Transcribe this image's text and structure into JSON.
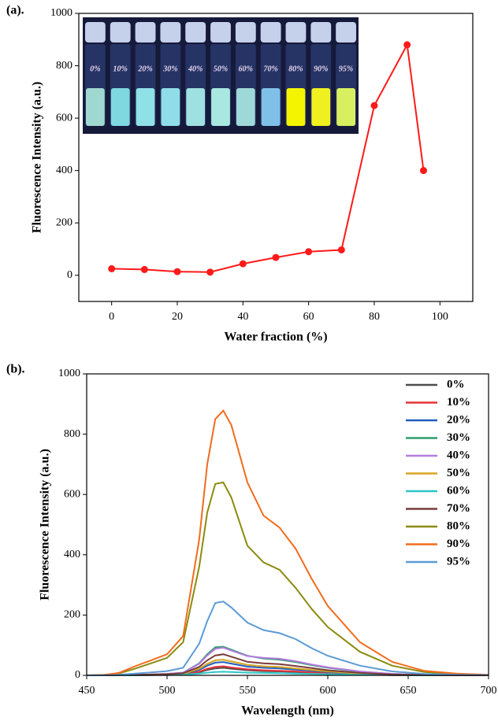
{
  "chart_data": [
    {
      "type": "line",
      "panel_label": "(a).",
      "x_label": "Water fraction (%)",
      "y_label": "Fluorescence Intensity (a.u.)",
      "x": [
        0,
        10,
        20,
        30,
        40,
        50,
        60,
        70,
        80,
        90,
        95
      ],
      "values": [
        25,
        22,
        14,
        12,
        44,
        68,
        90,
        97,
        648,
        880,
        400
      ],
      "color": "#ff1a1a",
      "xlim": [
        -10,
        110
      ],
      "xticks": [
        0,
        20,
        40,
        60,
        80,
        100
      ],
      "ylim": [
        -100,
        1000
      ],
      "yticks": [
        0,
        200,
        400,
        600,
        800,
        1000
      ],
      "inset_labels": [
        "0%",
        "10%",
        "20%",
        "30%",
        "40%",
        "50%",
        "60%",
        "70%",
        "80%",
        "90%",
        "95%"
      ]
    },
    {
      "type": "line",
      "panel_label": "(b).",
      "x_label": "Wavelength (nm)",
      "y_label": "Fluorescence Intensity (a.u.)",
      "x": [
        450,
        460,
        470,
        480,
        490,
        500,
        510,
        520,
        525,
        530,
        535,
        540,
        550,
        560,
        570,
        580,
        590,
        600,
        620,
        640,
        660,
        680,
        700
      ],
      "xlim": [
        450,
        700
      ],
      "xticks": [
        450,
        500,
        550,
        600,
        650,
        700
      ],
      "ylim": [
        0,
        1000
      ],
      "yticks": [
        0,
        200,
        400,
        600,
        800,
        1000
      ],
      "legend": "upper right",
      "series": [
        {
          "name": "0%",
          "color": "#4d4d4d",
          "values": [
            0,
            0,
            0,
            1,
            1,
            2,
            3,
            10,
            18,
            23,
            25,
            22,
            17,
            14,
            13,
            11,
            8,
            6,
            3,
            1,
            0,
            0,
            0
          ]
        },
        {
          "name": "10%",
          "color": "#e8333a",
          "values": [
            0,
            0,
            0,
            1,
            1,
            2,
            4,
            12,
            22,
            28,
            30,
            26,
            20,
            17,
            15,
            13,
            10,
            7,
            3,
            1,
            0,
            0,
            0
          ]
        },
        {
          "name": "20%",
          "color": "#1f5fbf",
          "values": [
            0,
            0,
            0,
            1,
            2,
            3,
            5,
            18,
            32,
            42,
            44,
            39,
            29,
            25,
            23,
            19,
            15,
            11,
            5,
            2,
            1,
            0,
            0
          ]
        },
        {
          "name": "30%",
          "color": "#2e9e6e",
          "values": [
            0,
            0,
            1,
            2,
            3,
            5,
            9,
            40,
            70,
            93,
            95,
            85,
            65,
            56,
            52,
            44,
            34,
            25,
            12,
            5,
            2,
            1,
            0
          ]
        },
        {
          "name": "40%",
          "color": "#b57be0",
          "values": [
            0,
            0,
            1,
            2,
            3,
            5,
            9,
            38,
            66,
            88,
            92,
            82,
            64,
            58,
            55,
            47,
            36,
            27,
            13,
            5,
            2,
            1,
            0
          ]
        },
        {
          "name": "50%",
          "color": "#d6a520",
          "values": [
            0,
            0,
            1,
            1,
            2,
            3,
            5,
            22,
            38,
            50,
            52,
            46,
            35,
            30,
            28,
            23,
            18,
            13,
            6,
            2,
            1,
            0,
            0
          ]
        },
        {
          "name": "60%",
          "color": "#2bc6c6",
          "values": [
            0,
            0,
            0,
            0,
            1,
            1,
            2,
            6,
            9,
            11,
            12,
            11,
            9,
            8,
            7,
            6,
            5,
            4,
            2,
            1,
            0,
            0,
            0
          ]
        },
        {
          "name": "70%",
          "color": "#7a3b3b",
          "values": [
            0,
            0,
            1,
            2,
            3,
            4,
            7,
            28,
            50,
            66,
            70,
            62,
            45,
            40,
            37,
            31,
            24,
            17,
            8,
            3,
            1,
            0,
            0
          ]
        },
        {
          "name": "80%",
          "color": "#8b8b10",
          "values": [
            0,
            1,
            6,
            22,
            40,
            58,
            110,
            360,
            540,
            635,
            640,
            590,
            430,
            375,
            350,
            290,
            220,
            160,
            78,
            32,
            11,
            4,
            1
          ]
        },
        {
          "name": "90%",
          "color": "#f26b1d",
          "values": [
            0,
            1,
            8,
            30,
            50,
            70,
            130,
            450,
            700,
            850,
            878,
            830,
            640,
            530,
            490,
            420,
            320,
            230,
            110,
            45,
            15,
            6,
            2
          ]
        },
        {
          "name": "95%",
          "color": "#5b9bd5",
          "values": [
            0,
            0,
            2,
            6,
            10,
            14,
            25,
            105,
            180,
            240,
            245,
            225,
            175,
            150,
            140,
            120,
            90,
            65,
            32,
            13,
            5,
            2,
            1
          ]
        }
      ]
    }
  ]
}
